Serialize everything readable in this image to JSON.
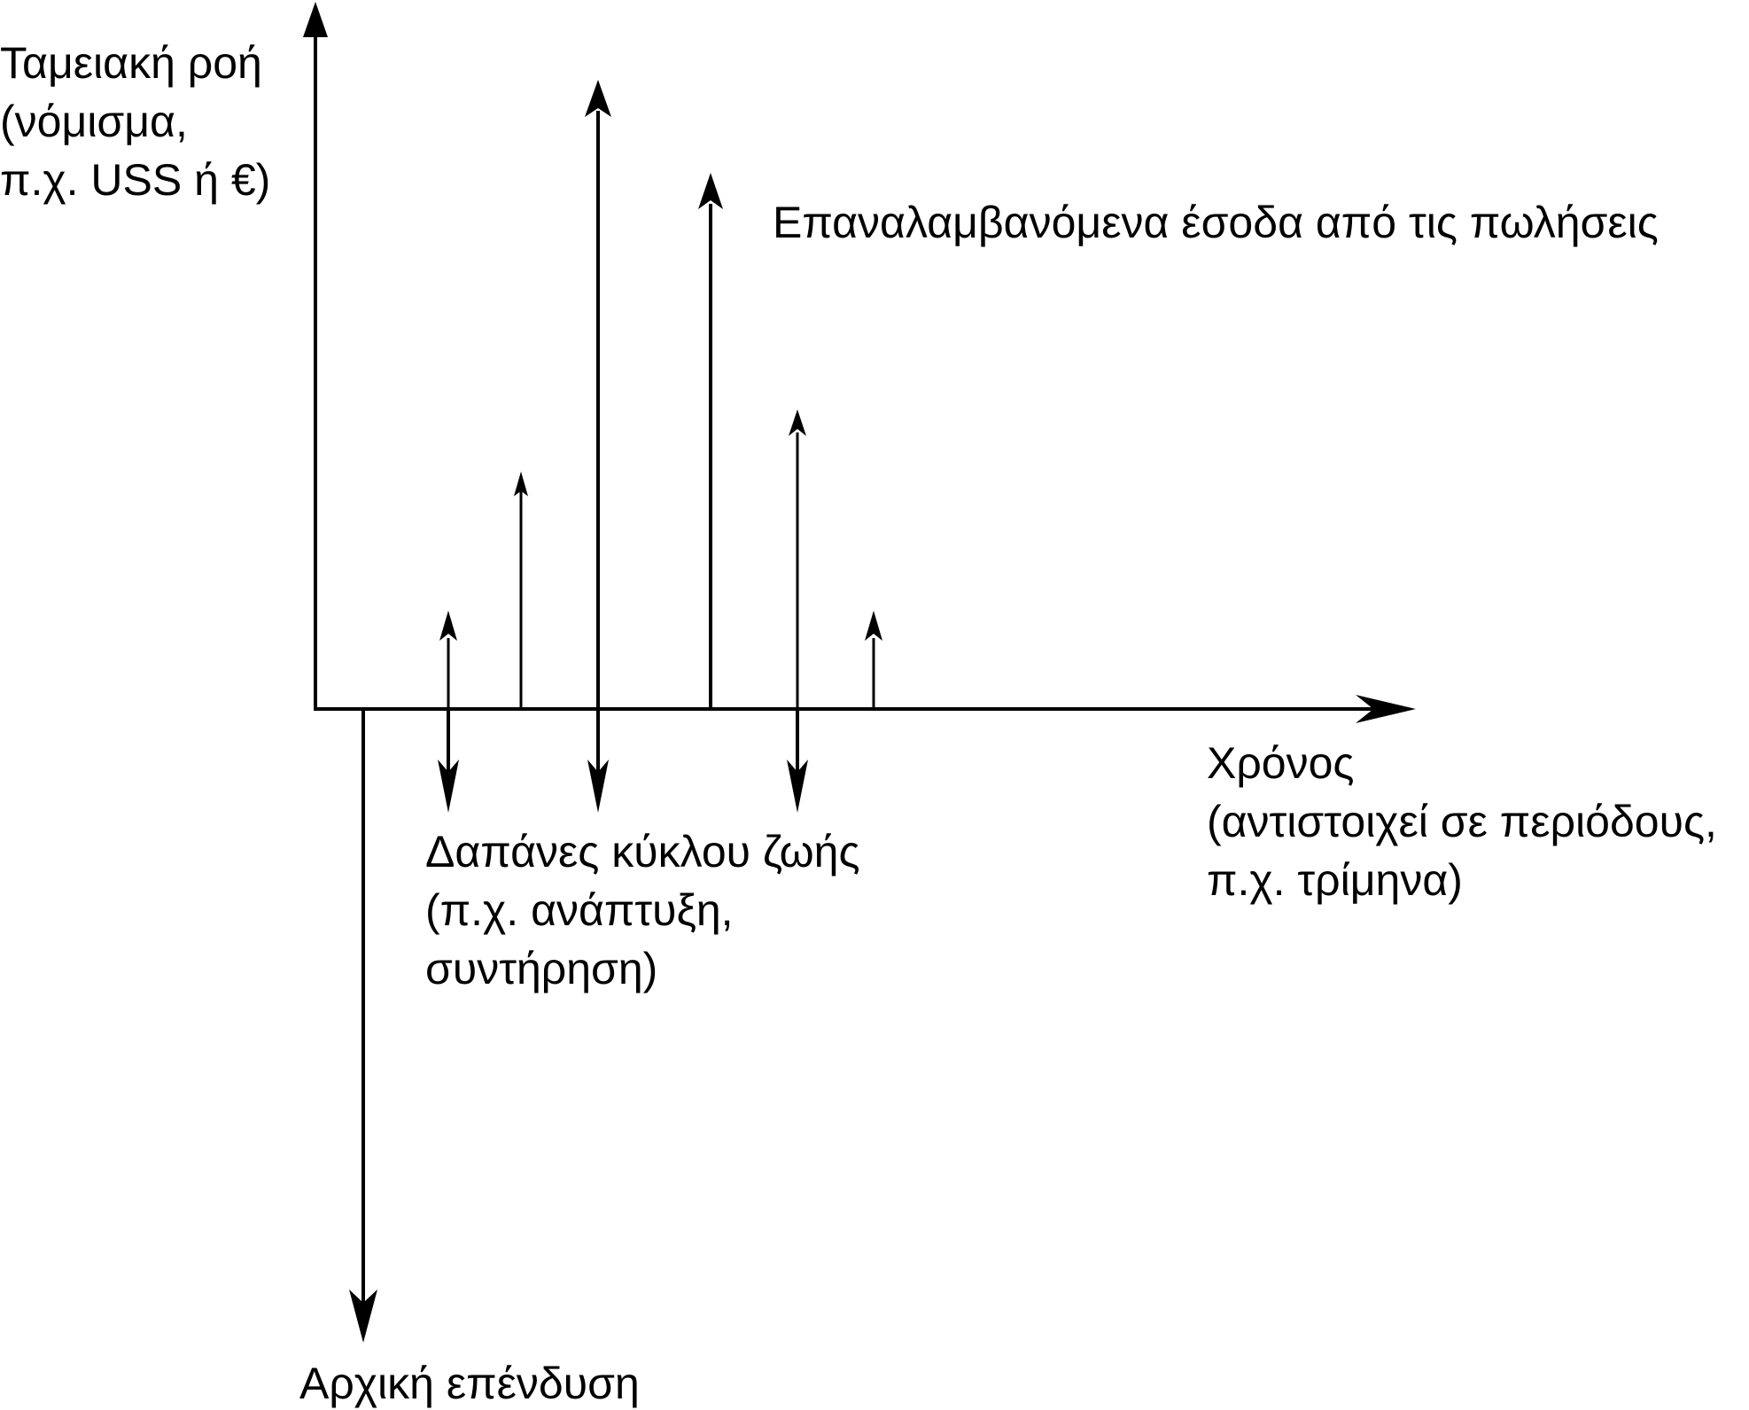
{
  "y_axis_label": [
    "Ταμειακή ροή",
    "(νόμισμα,",
    "π.χ. USS ή €)"
  ],
  "revenue_label": "Επαναλαμβανόμενα έσοδα από τις πωλήσεις",
  "x_axis_label": [
    "Χρόνος",
    "(αντιστοιχεί σε περιόδους,",
    "π.χ. τρίμηνα)"
  ],
  "costs_label": [
    "Δαπάνες κύκλου ζωής",
    "(π.χ. ανάπτυξη,",
    "συντήρηση)"
  ],
  "investment_label": "Αρχική επένδυση",
  "colors": {
    "ink": "#000000",
    "background": "#ffffff"
  }
}
